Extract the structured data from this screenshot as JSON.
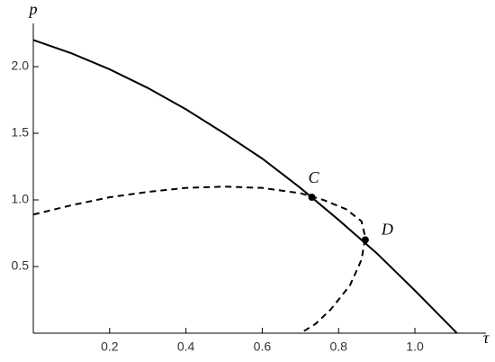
{
  "chart_data": {
    "type": "line",
    "x_label": "τ",
    "y_label": "p",
    "xlim": [
      0,
      1.17
    ],
    "ylim": [
      0,
      2.3
    ],
    "xticks": [
      0.2,
      0.4,
      0.6,
      0.8,
      {
        "value": 1,
        "label": "1.0"
      }
    ],
    "yticks": [
      0.5,
      {
        "value": 1,
        "label": "1.0"
      },
      1.5,
      {
        "value": 2,
        "label": "2.0"
      }
    ],
    "series": [
      {
        "color": "#000000",
        "style": "solid",
        "x": [
          0,
          0.1,
          0.2,
          0.3,
          0.4,
          0.5,
          0.6,
          0.7,
          0.8,
          0.9,
          1.0,
          1.1,
          1.11
        ],
        "values": [
          2.2,
          2.1,
          1.98,
          1.84,
          1.68,
          1.5,
          1.31,
          1.09,
          0.85,
          0.6,
          0.32,
          0.03,
          0
        ]
      },
      {
        "color": "#000000",
        "style": "dashed",
        "x": [
          0,
          0.1,
          0.2,
          0.3,
          0.4,
          0.5,
          0.6,
          0.7,
          0.76,
          0.82,
          0.86,
          0.87,
          0.86,
          0.83,
          0.78,
          0.74,
          0.7
        ],
        "values": [
          0.89,
          0.96,
          1.02,
          1.06,
          1.09,
          1.1,
          1.09,
          1.05,
          1.0,
          0.93,
          0.84,
          0.72,
          0.55,
          0.36,
          0.18,
          0.07,
          0
        ]
      }
    ],
    "points": [
      {
        "label": "C",
        "x": 0.73,
        "y": 1.02
      },
      {
        "label": "D",
        "x": 0.87,
        "y": 0.7
      }
    ]
  }
}
